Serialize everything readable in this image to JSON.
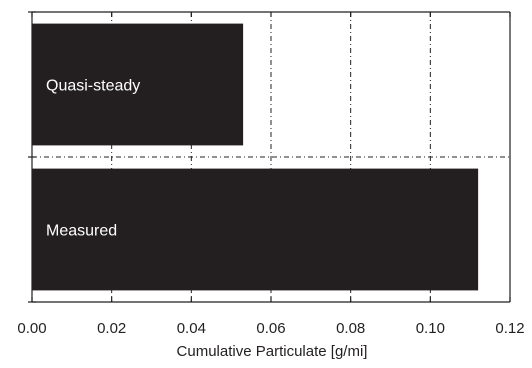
{
  "chart_data": {
    "type": "bar",
    "orientation": "horizontal",
    "title": "",
    "xlabel": "Cumulative Particulate [g/mi]",
    "ylabel": "",
    "xlim": [
      0,
      0.12
    ],
    "xticks": [
      0,
      0.02,
      0.04,
      0.06,
      0.08,
      0.1,
      0.12
    ],
    "xtick_labels": [
      "0.00",
      "0.02",
      "0.04",
      "0.06",
      "0.08",
      "0.10",
      "0.12"
    ],
    "categories": [
      "Quasi-steady",
      "Measured"
    ],
    "values": [
      0.053,
      0.112
    ],
    "bar_color": "#231f20",
    "bar_label_color": "#ffffff",
    "grid": "dash-dot",
    "legend": "none"
  }
}
